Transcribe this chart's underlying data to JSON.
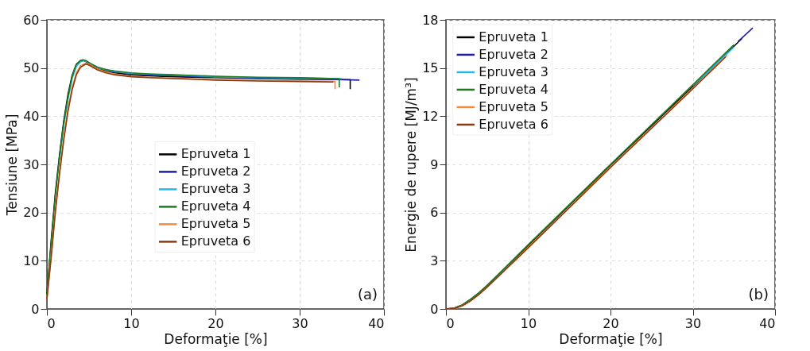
{
  "chart_data": [
    {
      "type": "line",
      "xlabel": "Deformaţie [%]",
      "ylabel": "Tensiune [MPa]",
      "xlim": [
        0,
        40
      ],
      "ylim": [
        0,
        60
      ],
      "xticks": [
        0,
        10,
        20,
        30,
        40
      ],
      "yticks": [
        0,
        10,
        20,
        30,
        40,
        50,
        60
      ],
      "grid": true,
      "legend": "center",
      "annotations": [
        "(a)"
      ],
      "series": [
        {
          "name": "Epruveta 1",
          "color": "#000000",
          "x": [
            0,
            0.5,
            1,
            1.5,
            2,
            2.5,
            3,
            3.5,
            4,
            4.3,
            4.7,
            5.2,
            6,
            7,
            8,
            10,
            12,
            15,
            20,
            25,
            30,
            36.0,
            36.0
          ],
          "values": [
            3,
            14,
            24,
            32,
            39,
            44.5,
            48.5,
            50.8,
            51.5,
            51.6,
            51.3,
            50.6,
            49.9,
            49.4,
            49.0,
            48.6,
            48.4,
            48.2,
            48.0,
            47.8,
            47.7,
            47.6,
            45.6
          ]
        },
        {
          "name": "Epruveta 2",
          "color": "#1f1f9f",
          "x": [
            7,
            8,
            10,
            12,
            15,
            20,
            25,
            30,
            37.1
          ],
          "values": [
            49.5,
            49.2,
            48.8,
            48.6,
            48.4,
            48.1,
            47.9,
            47.8,
            47.5
          ]
        },
        {
          "name": "Epruveta 3",
          "color": "#22b8ec",
          "x": [
            1.5,
            2,
            2.5,
            3,
            3.5,
            4,
            4.4,
            4.8,
            5.3,
            6,
            7,
            8,
            10,
            12,
            15,
            20,
            25,
            30,
            35.0
          ],
          "values": [
            31,
            38,
            43.5,
            47.8,
            50.3,
            51.3,
            51.5,
            51.3,
            50.8,
            50.1,
            49.6,
            49.3,
            48.9,
            48.7,
            48.5,
            48.2,
            48.0,
            47.9,
            47.8
          ]
        },
        {
          "name": "Epruveta 4",
          "color": "#1e7b1e",
          "x": [
            0,
            0.5,
            1,
            1.5,
            2,
            2.5,
            3,
            3.5,
            4,
            4.3,
            4.7,
            5.2,
            6,
            7,
            8,
            10,
            12,
            15,
            20,
            25,
            30,
            34.7,
            34.7
          ],
          "values": [
            3,
            13.5,
            23.5,
            31.5,
            38.5,
            44,
            48.3,
            50.8,
            51.6,
            51.7,
            51.5,
            50.9,
            50.2,
            49.7,
            49.4,
            49.0,
            48.8,
            48.6,
            48.3,
            48.1,
            48.0,
            47.8,
            46.0
          ]
        },
        {
          "name": "Epruveta 5",
          "color": "#f08a40",
          "x": [
            0,
            0.5,
            1,
            1.5,
            2,
            2.5,
            3,
            3.5,
            4,
            4.6,
            5.0,
            5.5,
            6,
            7,
            8,
            10,
            12,
            15,
            20,
            25,
            30,
            34.2,
            34.2
          ],
          "values": [
            2,
            11,
            20.5,
            28.5,
            35.5,
            41.5,
            46,
            49,
            50.5,
            51.0,
            50.8,
            50.3,
            49.8,
            49.2,
            48.8,
            48.3,
            48.1,
            47.9,
            47.6,
            47.4,
            47.3,
            47.2,
            45.6
          ]
        },
        {
          "name": "Epruveta 6",
          "color": "#8b3a0f",
          "x": [
            0,
            0.5,
            1,
            1.5,
            2,
            2.5,
            3,
            3.5,
            4,
            4.6,
            5.0,
            5.5,
            6,
            7,
            8,
            10,
            12,
            15,
            20,
            25,
            30,
            34.0
          ],
          "values": [
            2,
            10.5,
            20,
            28,
            35,
            41,
            45.5,
            48.6,
            50.2,
            50.8,
            50.6,
            50.1,
            49.6,
            49.0,
            48.6,
            48.2,
            48.0,
            47.8,
            47.5,
            47.3,
            47.2,
            47.1
          ]
        }
      ]
    },
    {
      "type": "line",
      "xlabel": "Deformaţie [%]",
      "ylabel": "Energie de rupere [MJ/m³]",
      "xlim": [
        0,
        40
      ],
      "ylim": [
        0,
        18
      ],
      "xticks": [
        0,
        10,
        20,
        30,
        40
      ],
      "yticks": [
        0,
        3,
        6,
        9,
        12,
        15,
        18
      ],
      "grid": true,
      "legend": "top left",
      "annotations": [
        "(b)"
      ],
      "series": [
        {
          "name": "Epruveta 1",
          "color": "#000000",
          "x": [
            0,
            1,
            2,
            3,
            4,
            5,
            10,
            20,
            30,
            36.0
          ],
          "values": [
            0,
            0.05,
            0.25,
            0.6,
            1.0,
            1.45,
            3.95,
            8.95,
            13.85,
            16.85
          ]
        },
        {
          "name": "Epruveta 2",
          "color": "#1f1f9f",
          "x": [
            35.5,
            37.3
          ],
          "values": [
            16.65,
            17.5
          ]
        },
        {
          "name": "Epruveta 3",
          "color": "#22b8ec",
          "x": [
            30,
            35.0
          ],
          "values": [
            13.9,
            16.3
          ]
        },
        {
          "name": "Epruveta 4",
          "color": "#1e7b1e",
          "x": [
            0,
            1,
            2,
            3,
            4,
            5,
            10,
            20,
            30,
            35.0
          ],
          "values": [
            0,
            0.05,
            0.25,
            0.6,
            1.0,
            1.45,
            4.0,
            9.0,
            13.95,
            16.45
          ]
        },
        {
          "name": "Epruveta 5",
          "color": "#f08a40",
          "x": [
            0,
            1,
            2,
            3,
            4,
            5,
            10,
            20,
            30,
            34.2
          ],
          "values": [
            0,
            0.03,
            0.2,
            0.5,
            0.9,
            1.35,
            3.85,
            8.85,
            13.75,
            15.8
          ]
        },
        {
          "name": "Epruveta 6",
          "color": "#8b3a0f",
          "x": [
            0,
            1,
            2,
            3,
            4,
            5,
            10,
            20,
            30,
            34.0
          ],
          "values": [
            0,
            0.03,
            0.2,
            0.5,
            0.9,
            1.35,
            3.8,
            8.8,
            13.7,
            15.7
          ]
        }
      ]
    }
  ]
}
